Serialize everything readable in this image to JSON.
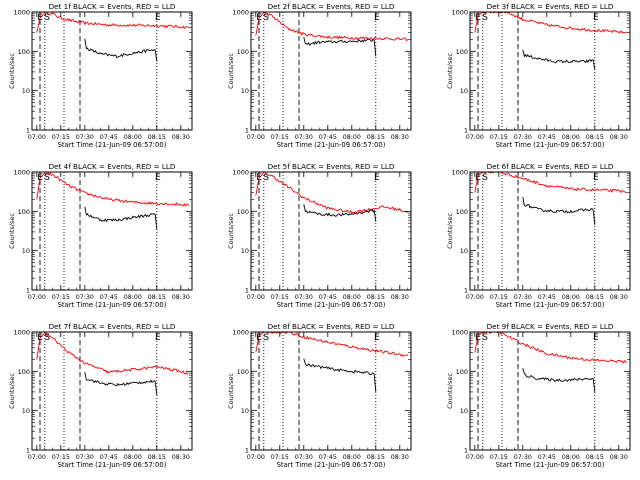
{
  "figure": {
    "xlabel": "Start Time (21-Jun-09 06:57:00)",
    "ylabel": "Counts/sec",
    "x_ticks": [
      "07:00",
      "07:15",
      "07:30",
      "07:45",
      "08:00",
      "08:15",
      "08:30"
    ],
    "y_ticks": [
      "1",
      "10",
      "100",
      "1000"
    ],
    "markers": {
      "E": "E",
      "S": "S"
    },
    "colors": {
      "events": "#000000",
      "lld": "#ff0000"
    }
  },
  "chart_data": [
    {
      "type": "line",
      "title": "Det 1f BLACK = Events, RED = LLD",
      "xlabel": "Start Time (21-Jun-09 06:57:00)",
      "ylabel": "Counts/sec",
      "x_range": [
        "06:57",
        "08:37"
      ],
      "ylim": [
        1,
        1000
      ],
      "y_scale": "log",
      "markers": {
        "E": "07:04",
        "S": "07:04",
        "E2": "08:17"
      },
      "dotted_lines": [
        "07:05",
        "07:17",
        "08:15"
      ],
      "dashed_lines": [
        "07:02",
        "07:27"
      ],
      "series": [
        {
          "name": "LLD",
          "color": "#ff0000",
          "x": [
            "07:00",
            "07:02",
            "07:05",
            "07:10",
            "07:15",
            "07:25",
            "07:30",
            "07:45",
            "08:00",
            "08:15",
            "08:30",
            "08:35"
          ],
          "values": [
            300,
            700,
            950,
            900,
            700,
            560,
            520,
            470,
            460,
            450,
            420,
            400
          ]
        },
        {
          "name": "Events",
          "color": "#000000",
          "x": [
            "07:30",
            "07:31",
            "07:40",
            "07:50",
            "08:00",
            "08:10",
            "08:14",
            "08:15"
          ],
          "values": [
            210,
            120,
            85,
            75,
            90,
            105,
            110,
            55
          ]
        }
      ]
    },
    {
      "type": "line",
      "title": "Det 2f BLACK = Events, RED = LLD",
      "xlabel": "Start Time (21-Jun-09 06:57:00)",
      "ylabel": "Counts/sec",
      "x_range": [
        "06:57",
        "08:37"
      ],
      "ylim": [
        1,
        1000
      ],
      "y_scale": "log",
      "markers": {
        "E": "07:04",
        "S": "07:04",
        "E2": "08:17"
      },
      "dotted_lines": [
        "07:05",
        "07:17",
        "08:15"
      ],
      "dashed_lines": [
        "07:02",
        "07:27"
      ],
      "series": [
        {
          "name": "LLD",
          "color": "#ff0000",
          "x": [
            "07:00",
            "07:02",
            "07:05",
            "07:10",
            "07:20",
            "07:30",
            "07:45",
            "08:00",
            "08:15",
            "08:30",
            "08:35"
          ],
          "values": [
            250,
            700,
            950,
            800,
            380,
            270,
            230,
            220,
            215,
            205,
            200
          ]
        },
        {
          "name": "Events",
          "color": "#000000",
          "x": [
            "07:30",
            "07:31",
            "07:40",
            "07:50",
            "08:00",
            "08:10",
            "08:14",
            "08:15"
          ],
          "values": [
            230,
            150,
            170,
            175,
            180,
            190,
            195,
            75
          ]
        }
      ]
    },
    {
      "type": "line",
      "title": "Det 3f BLACK = Events, RED = LLD",
      "xlabel": "Start Time (21-Jun-09 06:57:00)",
      "ylabel": "Counts/sec",
      "x_range": [
        "06:57",
        "08:37"
      ],
      "ylim": [
        1,
        1000
      ],
      "y_scale": "log",
      "markers": {
        "E": "07:04",
        "S": "07:04",
        "E2": "08:17"
      },
      "dotted_lines": [
        "07:05",
        "07:17",
        "08:15"
      ],
      "dashed_lines": [
        "07:02",
        "07:27"
      ],
      "series": [
        {
          "name": "LLD",
          "color": "#ff0000",
          "x": [
            "07:00",
            "07:02",
            "07:05",
            "07:20",
            "07:30",
            "07:45",
            "08:00",
            "08:15",
            "08:30",
            "08:35"
          ],
          "values": [
            300,
            800,
            1000,
            1000,
            650,
            470,
            390,
            340,
            310,
            300
          ]
        },
        {
          "name": "Events",
          "color": "#000000",
          "x": [
            "07:30",
            "07:31",
            "07:40",
            "07:50",
            "08:00",
            "08:10",
            "08:14",
            "08:15"
          ],
          "values": [
            110,
            80,
            65,
            55,
            55,
            55,
            60,
            35
          ]
        }
      ]
    },
    {
      "type": "line",
      "title": "Det 4f BLACK = Events, RED = LLD",
      "xlabel": "Start Time (21-Jun-09 06:57:00)",
      "ylabel": "Counts/sec",
      "x_range": [
        "06:57",
        "08:37"
      ],
      "ylim": [
        1,
        1000
      ],
      "y_scale": "log",
      "markers": {
        "E": "07:04",
        "S": "07:04",
        "E2": "08:17"
      },
      "dotted_lines": [
        "07:05",
        "07:17",
        "08:15"
      ],
      "dashed_lines": [
        "07:02",
        "07:27"
      ],
      "series": [
        {
          "name": "LLD",
          "color": "#ff0000",
          "x": [
            "07:00",
            "07:02",
            "07:05",
            "07:10",
            "07:20",
            "07:30",
            "07:45",
            "08:00",
            "08:15",
            "08:30",
            "08:35"
          ],
          "values": [
            200,
            700,
            950,
            850,
            450,
            290,
            200,
            170,
            160,
            150,
            140
          ]
        },
        {
          "name": "Events",
          "color": "#000000",
          "x": [
            "07:30",
            "07:31",
            "07:40",
            "07:50",
            "08:00",
            "08:10",
            "08:14",
            "08:15"
          ],
          "values": [
            130,
            85,
            60,
            60,
            70,
            80,
            85,
            35
          ]
        }
      ]
    },
    {
      "type": "line",
      "title": "Det 5f BLACK = Events, RED = LLD",
      "xlabel": "Start Time (21-Jun-09 06:57:00)",
      "ylabel": "Counts/sec",
      "x_range": [
        "06:57",
        "08:37"
      ],
      "ylim": [
        1,
        1000
      ],
      "y_scale": "log",
      "markers": {
        "E": "07:04",
        "S": "07:04",
        "E2": "08:17"
      },
      "dotted_lines": [
        "07:05",
        "07:17",
        "08:15"
      ],
      "dashed_lines": [
        "07:02",
        "07:27"
      ],
      "series": [
        {
          "name": "LLD",
          "color": "#ff0000",
          "x": [
            "07:00",
            "07:02",
            "07:05",
            "07:10",
            "07:20",
            "07:30",
            "07:45",
            "08:00",
            "08:10",
            "08:20",
            "08:30",
            "08:35"
          ],
          "values": [
            250,
            700,
            950,
            800,
            420,
            220,
            120,
            95,
            110,
            130,
            110,
            95
          ]
        },
        {
          "name": "Events",
          "color": "#000000",
          "x": [
            "07:30",
            "07:31",
            "07:40",
            "07:50",
            "08:00",
            "08:10",
            "08:14",
            "08:15"
          ],
          "values": [
            150,
            100,
            85,
            80,
            85,
            100,
            105,
            55
          ]
        }
      ]
    },
    {
      "type": "line",
      "title": "Det 6f BLACK = Events, RED = LLD",
      "xlabel": "Start Time (21-Jun-09 06:57:00)",
      "ylabel": "Counts/sec",
      "x_range": [
        "06:57",
        "08:37"
      ],
      "ylim": [
        1,
        1000
      ],
      "y_scale": "log",
      "markers": {
        "E": "07:04",
        "S": "07:04",
        "E2": "08:17"
      },
      "dotted_lines": [
        "07:05",
        "07:17",
        "08:15"
      ],
      "dashed_lines": [
        "07:02",
        "07:27"
      ],
      "series": [
        {
          "name": "LLD",
          "color": "#ff0000",
          "x": [
            "07:00",
            "07:02",
            "07:05",
            "07:15",
            "07:30",
            "07:45",
            "08:00",
            "08:15",
            "08:30",
            "08:35"
          ],
          "values": [
            300,
            800,
            1000,
            1000,
            680,
            450,
            370,
            350,
            330,
            300
          ]
        },
        {
          "name": "Events",
          "color": "#000000",
          "x": [
            "07:30",
            "07:31",
            "07:40",
            "07:50",
            "08:00",
            "08:10",
            "08:14",
            "08:15"
          ],
          "values": [
            230,
            150,
            110,
            100,
            100,
            110,
            110,
            45
          ]
        }
      ]
    },
    {
      "type": "line",
      "title": "Det 7f BLACK = Events, RED = LLD",
      "xlabel": "Start Time (21-Jun-09 06:57:00)",
      "ylabel": "Counts/sec",
      "x_range": [
        "06:57",
        "08:37"
      ],
      "ylim": [
        1,
        1000
      ],
      "y_scale": "log",
      "markers": {
        "E": "07:04",
        "S": "07:04",
        "E2": "08:17"
      },
      "dotted_lines": [
        "07:05",
        "07:17",
        "08:15"
      ],
      "dashed_lines": [
        "07:02",
        "07:27"
      ],
      "series": [
        {
          "name": "LLD",
          "color": "#ff0000",
          "x": [
            "07:00",
            "07:02",
            "07:05",
            "07:10",
            "07:20",
            "07:30",
            "07:45",
            "08:00",
            "08:15",
            "08:30",
            "08:35"
          ],
          "values": [
            200,
            700,
            950,
            700,
            300,
            160,
            95,
            110,
            130,
            100,
            85
          ]
        },
        {
          "name": "Events",
          "color": "#000000",
          "x": [
            "07:30",
            "07:31",
            "07:40",
            "07:50",
            "08:00",
            "08:10",
            "08:14",
            "08:15"
          ],
          "values": [
            95,
            65,
            50,
            45,
            50,
            55,
            55,
            25
          ]
        }
      ]
    },
    {
      "type": "line",
      "title": "Det 8f BLACK = Events, RED = LLD",
      "xlabel": "Start Time (21-Jun-09 06:57:00)",
      "ylabel": "Counts/sec",
      "x_range": [
        "06:57",
        "08:37"
      ],
      "ylim": [
        1,
        1000
      ],
      "y_scale": "log",
      "markers": {
        "E": "07:04",
        "S": "07:04",
        "E2": "08:17"
      },
      "dotted_lines": [
        "07:05",
        "07:17",
        "08:15"
      ],
      "dashed_lines": [
        "07:02",
        "07:27"
      ],
      "series": [
        {
          "name": "LLD",
          "color": "#ff0000",
          "x": [
            "07:00",
            "07:02",
            "07:05",
            "07:20",
            "07:30",
            "07:45",
            "08:00",
            "08:15",
            "08:30",
            "08:35"
          ],
          "values": [
            300,
            800,
            1000,
            1000,
            750,
            550,
            420,
            330,
            270,
            250
          ]
        },
        {
          "name": "Events",
          "color": "#000000",
          "x": [
            "07:30",
            "07:31",
            "07:40",
            "07:50",
            "08:00",
            "08:10",
            "08:14",
            "08:15"
          ],
          "values": [
            210,
            150,
            130,
            110,
            100,
            90,
            85,
            30
          ]
        }
      ]
    },
    {
      "type": "line",
      "title": "Det 9f BLACK = Events, RED = LLD",
      "xlabel": "Start Time (21-Jun-09 06:57:00)",
      "ylabel": "Counts/sec",
      "x_range": [
        "06:57",
        "08:37"
      ],
      "ylim": [
        1,
        1000
      ],
      "y_scale": "log",
      "markers": {
        "E": "07:04",
        "S": "07:04",
        "E2": "08:17"
      },
      "dotted_lines": [
        "07:05",
        "07:17",
        "08:15"
      ],
      "dashed_lines": [
        "07:02",
        "07:27"
      ],
      "series": [
        {
          "name": "LLD",
          "color": "#ff0000",
          "x": [
            "07:00",
            "07:02",
            "07:05",
            "07:15",
            "07:30",
            "07:45",
            "08:00",
            "08:15",
            "08:30",
            "08:35"
          ],
          "values": [
            300,
            800,
            1000,
            1000,
            500,
            280,
            220,
            190,
            180,
            170
          ]
        },
        {
          "name": "Events",
          "color": "#000000",
          "x": [
            "07:30",
            "07:31",
            "07:40",
            "07:50",
            "08:00",
            "08:10",
            "08:14",
            "08:15"
          ],
          "values": [
            120,
            80,
            65,
            60,
            60,
            65,
            65,
            30
          ]
        }
      ]
    }
  ]
}
